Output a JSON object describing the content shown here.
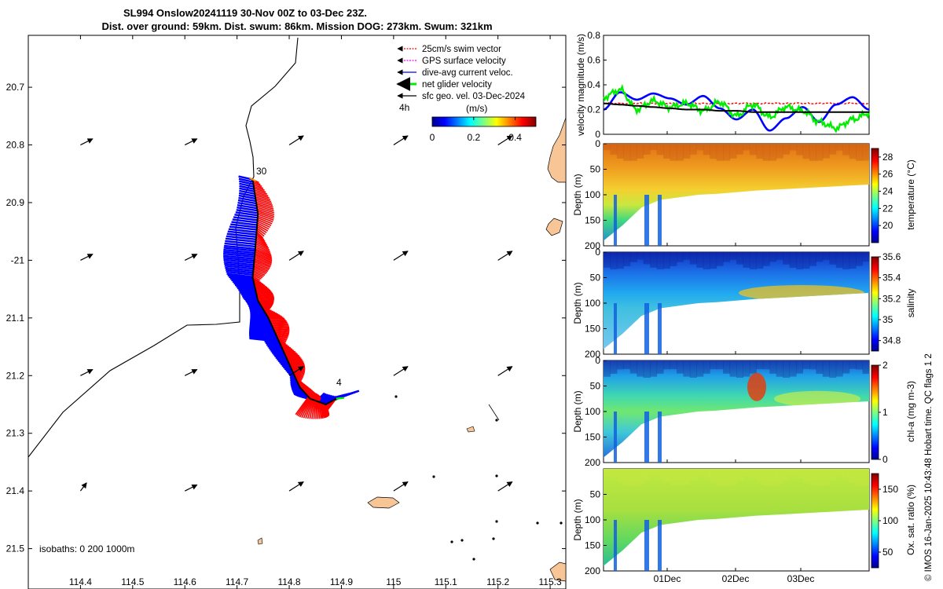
{
  "header": {
    "line1": "SL994 Onslow20241119 30-Nov 00Z to 03-Dec 23Z.",
    "line2": "Dist. over ground: 59km. Dist. swum: 86km. Mission DOG: 273km. Swum: 321km"
  },
  "side_note": "© IMOS 16-Jan-2025 10:43:48 Hobart time. QC flags 1  2",
  "map": {
    "legend": [
      {
        "label": "25cm/s swim vector",
        "color": "#ff0000"
      },
      {
        "label": "GPS surface velocity",
        "color": "#ff00ff"
      },
      {
        "label": "dive-avg current veloc.",
        "color": "#0000ff"
      },
      {
        "label": "net glider velocity",
        "color": "#00ee00"
      },
      {
        "label": "sfc geo. vel. 03-Dec-2024",
        "color": "#000000"
      }
    ],
    "scale_label": "4h",
    "speed_colorbar": {
      "title": "(m/s)",
      "ticks": [
        "0",
        "0.2",
        "0.4"
      ],
      "range": [
        0,
        0.5
      ]
    },
    "isobaths_label": "isobaths: 0   200  1000m",
    "track_labels": [
      "30",
      "4"
    ],
    "accent": {
      "swim": "#ff0000",
      "current": "#0000ff",
      "net": "#00ee00",
      "land": "#f8c597"
    }
  },
  "chart_data": [
    {
      "type": "map",
      "xlabel": "",
      "ylabel": "",
      "xlim": [
        114.3,
        115.33
      ],
      "ylim": [
        -21.57,
        -20.61
      ],
      "x_ticks": [
        114.4,
        114.5,
        114.6,
        114.7,
        114.8,
        114.9,
        115.0,
        115.1,
        115.2,
        115.3
      ],
      "x_tick_labels": [
        "114.4",
        "114.5",
        "114.6",
        "114.7",
        "114.8",
        "114.9",
        "115",
        "115.1",
        "115.2",
        "115.3"
      ],
      "y_ticks": [
        -20.7,
        -20.8,
        -20.9,
        -21.0,
        -21.1,
        -21.2,
        -21.3,
        -21.4,
        -21.5
      ],
      "y_tick_labels": [
        "20.7",
        "20.8",
        "20.9",
        "-21",
        "21.1",
        "21.2",
        "21.3",
        "21.4",
        "21.5"
      ],
      "track": [
        [
          114.73,
          -20.86
        ],
        [
          114.74,
          -20.92
        ],
        [
          114.735,
          -20.98
        ],
        [
          114.73,
          -21.03
        ],
        [
          114.74,
          -21.07
        ],
        [
          114.76,
          -21.1
        ],
        [
          114.78,
          -21.14
        ],
        [
          114.8,
          -21.18
        ],
        [
          114.82,
          -21.22
        ],
        [
          114.84,
          -21.24
        ],
        [
          114.87,
          -21.25
        ],
        [
          114.89,
          -21.24
        ]
      ],
      "geostrophic_vectors": {
        "lons": [
          114.4,
          114.6,
          114.8,
          115.0,
          115.2
        ],
        "lats": [
          -20.8,
          -21.0,
          -21.2,
          -21.4
        ],
        "u": 0.12,
        "v": 0.06
      }
    },
    {
      "type": "line",
      "ylabel": "velocity magnitude (m/s)",
      "ylim": [
        0,
        0.8
      ],
      "y_ticks": [
        0,
        0.2,
        0.4,
        0.6,
        0.8
      ],
      "x_range_days": [
        0,
        4
      ],
      "series": [
        {
          "name": "swim",
          "color": "#ff0000",
          "values": [
            0.25,
            0.25,
            0.25,
            0.25,
            0.25,
            0.25,
            0.25,
            0.25,
            0.25,
            0.25,
            0.25,
            0.25,
            0.25,
            0.25,
            0.25,
            0.25,
            0.25
          ]
        },
        {
          "name": "current",
          "color": "#0000ff",
          "values": [
            0.2,
            0.34,
            0.28,
            0.33,
            0.29,
            0.24,
            0.31,
            0.21,
            0.12,
            0.2,
            0.03,
            0.13,
            0.22,
            0.1,
            0.24,
            0.3,
            0.2
          ]
        },
        {
          "name": "net",
          "color": "#00ee00",
          "values": [
            0.3,
            0.36,
            0.2,
            0.27,
            0.22,
            0.25,
            0.19,
            0.26,
            0.15,
            0.24,
            0.14,
            0.22,
            0.19,
            0.1,
            0.05,
            0.12,
            0.17
          ]
        },
        {
          "name": "geo",
          "color": "#000000",
          "values": [
            0.25,
            0.24,
            0.23,
            0.22,
            0.21,
            0.2,
            0.2,
            0.19,
            0.19,
            0.18,
            0.18,
            0.18,
            0.18,
            0.18,
            0.18,
            0.18,
            0.18
          ]
        }
      ]
    },
    {
      "type": "heatmap",
      "ylabel": "Depth (m)",
      "cbar_label": "temperature (°C)",
      "clim": [
        18,
        29
      ],
      "cbar_ticks": [
        20,
        22,
        24,
        26,
        28
      ],
      "y_ticks": [
        0,
        50,
        100,
        150,
        200
      ],
      "x_tick_labels": [
        "01Dec",
        "02Dec",
        "03Dec"
      ],
      "bottom_depth_profile": [
        190,
        160,
        125,
        110,
        105,
        100,
        98,
        95,
        92,
        90,
        88,
        86,
        84,
        82,
        80
      ]
    },
    {
      "type": "heatmap",
      "ylabel": "Depth (m)",
      "cbar_label": "salinity",
      "clim": [
        34.7,
        35.6
      ],
      "cbar_ticks": [
        34.8,
        35,
        35.2,
        35.4,
        35.6
      ],
      "y_ticks": [
        0,
        50,
        100,
        150,
        200
      ],
      "x_tick_labels": [
        "01Dec",
        "02Dec",
        "03Dec"
      ]
    },
    {
      "type": "heatmap",
      "ylabel": "Depth (m)",
      "cbar_label": "chl-a (mg m-3)",
      "clim": [
        0,
        2
      ],
      "cbar_ticks": [
        0,
        1,
        2
      ],
      "y_ticks": [
        0,
        50,
        100,
        150,
        200
      ],
      "x_tick_labels": [
        "01Dec",
        "02Dec",
        "03Dec"
      ]
    },
    {
      "type": "heatmap",
      "ylabel": "Depth (m)",
      "cbar_label": "Ox. sat. ratio (%)",
      "clim": [
        25,
        175
      ],
      "cbar_ticks": [
        50,
        100,
        150
      ],
      "y_ticks": [
        50,
        100,
        150,
        200
      ],
      "x_tick_labels": [
        "01Dec",
        "02Dec",
        "03Dec"
      ]
    }
  ]
}
